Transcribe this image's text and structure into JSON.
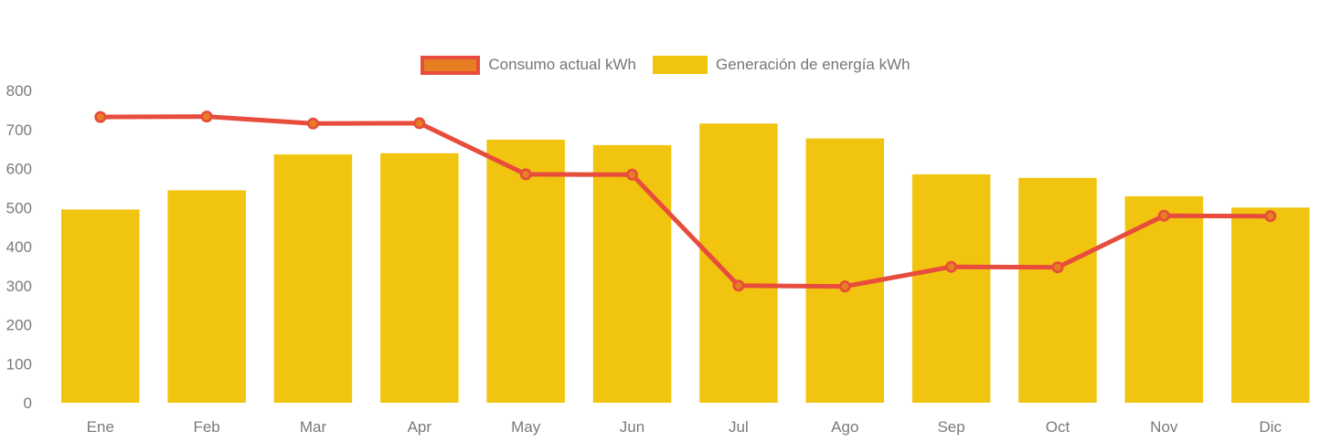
{
  "chart_data": {
    "type": "bar",
    "overlay": "line",
    "categories": [
      "Ene",
      "Feb",
      "Mar",
      "Apr",
      "May",
      "Jun",
      "Jul",
      "Ago",
      "Sep",
      "Oct",
      "Nov",
      "Dic"
    ],
    "series": [
      {
        "name": "Consumo actual kWh",
        "type": "line",
        "color": "#E74C3C",
        "marker_color": "#E67E22",
        "values": [
          732,
          733,
          715,
          716,
          585,
          584,
          300,
          298,
          348,
          347,
          479,
          478
        ]
      },
      {
        "name": "Generación de energía kWh",
        "type": "bar",
        "color": "#F1C40F",
        "values": [
          495,
          544,
          636,
          639,
          674,
          660,
          715,
          677,
          585,
          576,
          529,
          500
        ]
      }
    ],
    "ylim": [
      0,
      800
    ],
    "yticks": [
      800,
      700,
      600,
      500,
      400,
      300,
      200,
      100,
      0
    ],
    "xlabel": "",
    "ylabel": "",
    "title": "",
    "grid": false,
    "legend_position": "top-center",
    "axis_text_color": "#7A7A7A"
  }
}
